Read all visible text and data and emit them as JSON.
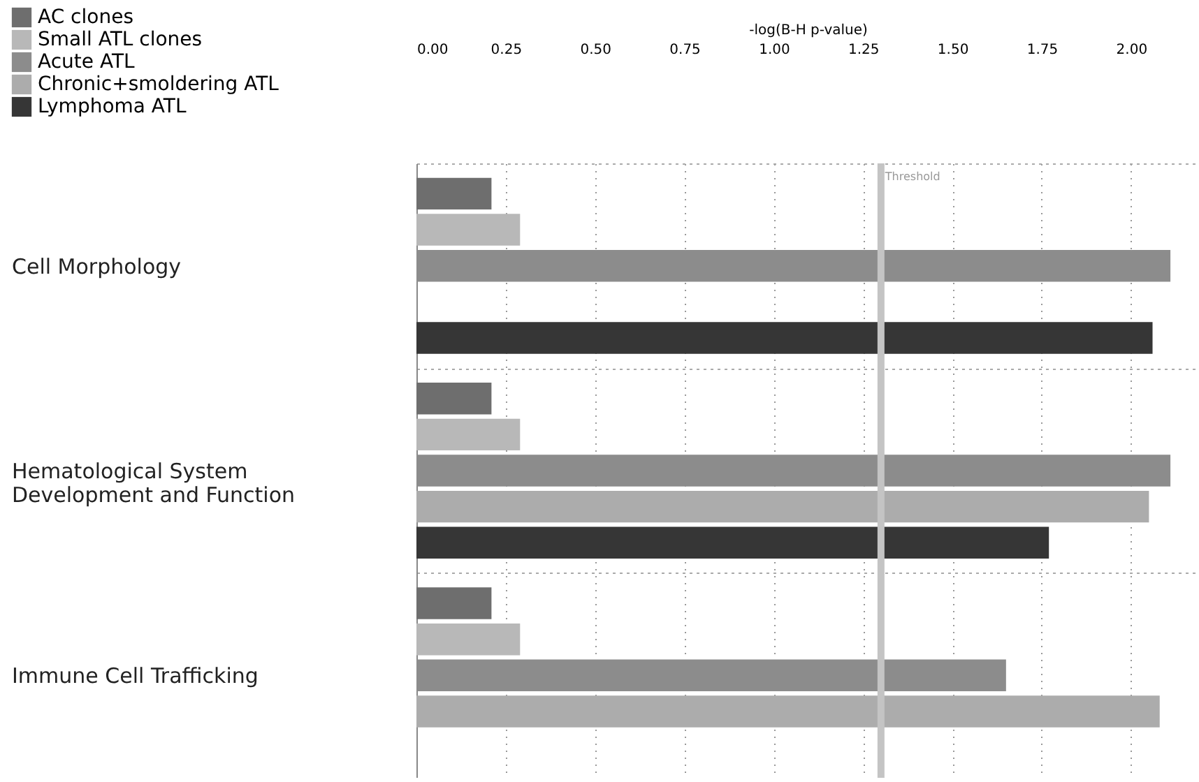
{
  "chart_data": {
    "type": "bar",
    "orientation": "horizontal",
    "categories": [
      "Cell Morphology",
      "Hematological System Development and Function",
      "Immune Cell Trafficking"
    ],
    "series": [
      {
        "name": "AC clones",
        "color": "#6e6e6e",
        "values": [
          0.21,
          0.21,
          0.21
        ]
      },
      {
        "name": "Small ATL clones",
        "color": "#b8b8b8",
        "values": [
          0.29,
          0.29,
          0.29
        ]
      },
      {
        "name": "Acute ATL",
        "color": "#8c8c8c",
        "values": [
          2.11,
          2.11,
          1.65
        ]
      },
      {
        "name": "Chronic+smoldering ATL",
        "color": "#acacac",
        "values": [
          null,
          2.05,
          2.08
        ]
      },
      {
        "name": "Lymphoma ATL",
        "color": "#363636",
        "values": [
          2.06,
          1.77,
          null
        ]
      }
    ],
    "xlabel": "-log(B-H p-value)",
    "xlim": [
      0,
      2.19
    ],
    "xticks": [
      {
        "value": 0,
        "label": "0.00"
      },
      {
        "value": 0.25,
        "label": "0.25"
      },
      {
        "value": 0.5,
        "label": "0.50"
      },
      {
        "value": 0.75,
        "label": "0.75"
      },
      {
        "value": 1,
        "label": "1.00"
      },
      {
        "value": 1.25,
        "label": "1.25"
      },
      {
        "value": 1.5,
        "label": "1.50"
      },
      {
        "value": 1.75,
        "label": "1.75"
      },
      {
        "value": 2,
        "label": "2.00"
      }
    ],
    "ref_lines": [
      {
        "axis": "x",
        "value": 1.3,
        "label": "Threshold",
        "color": "#c4c4c4"
      }
    ],
    "grid": true,
    "legend": "top left"
  }
}
